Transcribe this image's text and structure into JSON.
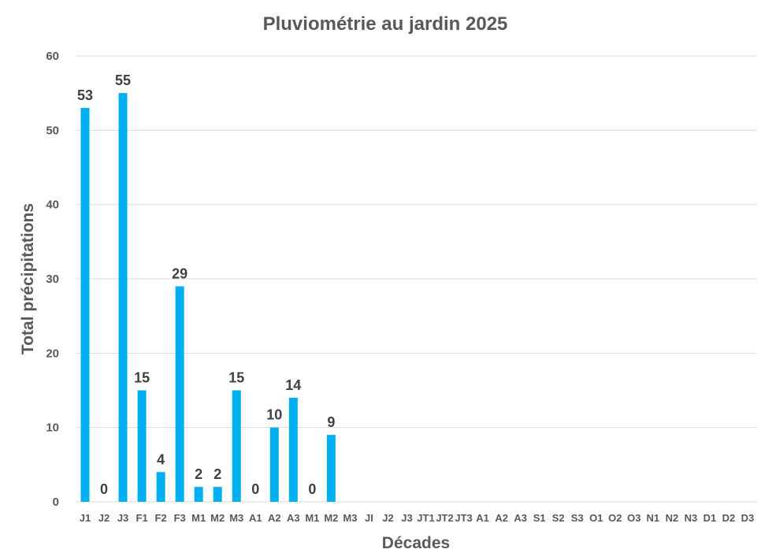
{
  "chart_data": {
    "type": "bar",
    "title": "Pluviométrie au jardin 2025",
    "xlabel": "Décades",
    "ylabel": "Total précipitations",
    "ylim": [
      0,
      60
    ],
    "yticks": [
      0,
      10,
      20,
      30,
      40,
      50,
      60
    ],
    "grid": true,
    "legend": "none",
    "colors": {
      "bar": "#00b0f0",
      "text": "#595959",
      "grid": "#d9d9d9"
    },
    "categories": [
      "J1",
      "J2",
      "J3",
      "F1",
      "F2",
      "F3",
      "M1",
      "M2",
      "M3",
      "A1",
      "A2",
      "A3",
      "M1",
      "M2",
      "M3",
      "JI",
      "J2",
      "J3",
      "JT1",
      "JT2",
      "JT3",
      "A1",
      "A2",
      "A3",
      "S1",
      "S2",
      "S3",
      "O1",
      "O2",
      "O3",
      "N1",
      "N2",
      "N3",
      "D1",
      "D2",
      "D3"
    ],
    "values": [
      53,
      0,
      55,
      15,
      4,
      29,
      2,
      2,
      15,
      0,
      10,
      14,
      0,
      9,
      null,
      null,
      null,
      null,
      null,
      null,
      null,
      null,
      null,
      null,
      null,
      null,
      null,
      null,
      null,
      null,
      null,
      null,
      null,
      null,
      null,
      null
    ]
  }
}
